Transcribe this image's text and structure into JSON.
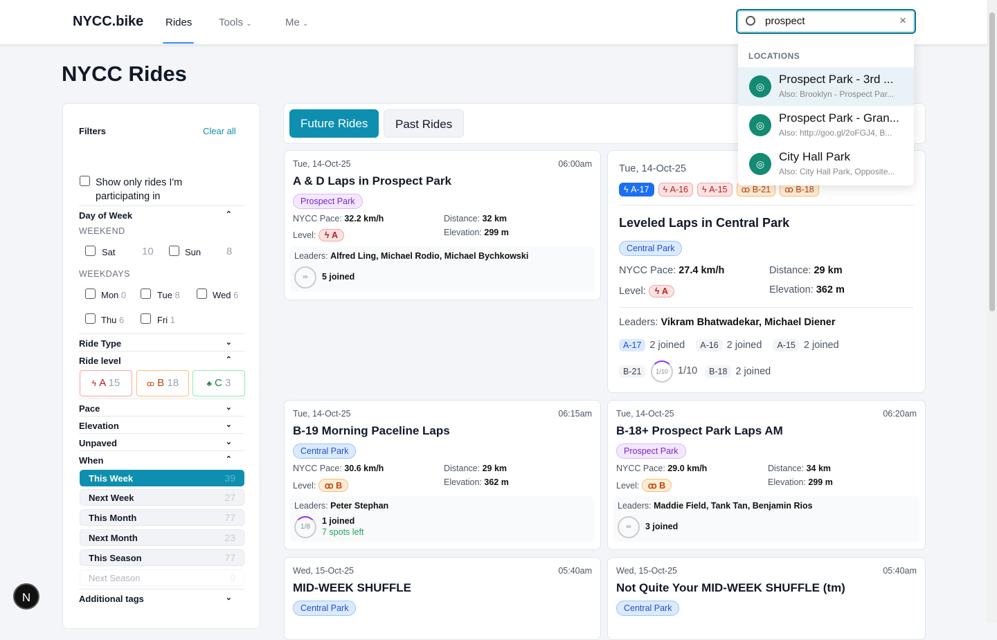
{
  "header": {
    "logo": "NYCC.bike",
    "nav": [
      "Rides",
      "Tools",
      "Me"
    ],
    "search_value": "prospect",
    "clear_icon": "×"
  },
  "dropdown": {
    "section": "LOCATIONS",
    "items": [
      {
        "title": "Prospect Park - 3rd ...",
        "sub": "Also: Brooklyn - Prospect Par..."
      },
      {
        "title": "Prospect Park - Gran...",
        "sub": "Also: http://goo.gl/2oFGJ4, B..."
      },
      {
        "title": "City Hall Park",
        "sub": "Also: City Hall Park, Opposite..."
      }
    ]
  },
  "page_title": "NYCC Rides",
  "filters": {
    "title": "Filters",
    "clear": "Clear all",
    "participating": "Show only rides I'm participating in",
    "day_of_week": "Day of Week",
    "weekend": "WEEKEND",
    "weekdays": "WEEKDAYS",
    "days": [
      {
        "l": "Sat",
        "n": "10"
      },
      {
        "l": "Sun",
        "n": "8"
      },
      {
        "l": "Mon",
        "n": "0"
      },
      {
        "l": "Tue",
        "n": "8"
      },
      {
        "l": "Wed",
        "n": "6"
      },
      {
        "l": "Thu",
        "n": "6"
      },
      {
        "l": "Fri",
        "n": "1"
      }
    ],
    "ride_type": "Ride Type",
    "ride_level": "Ride level",
    "levels": [
      {
        "l": "A",
        "n": "15"
      },
      {
        "l": "B",
        "n": "18"
      },
      {
        "l": "C",
        "n": "3"
      }
    ],
    "pace": "Pace",
    "elevation": "Elevation",
    "unpaved": "Unpaved",
    "when": "When",
    "when_items": [
      {
        "l": "This Week",
        "n": "39"
      },
      {
        "l": "Next Week",
        "n": "27"
      },
      {
        "l": "This Month",
        "n": "77"
      },
      {
        "l": "Next Month",
        "n": "23"
      },
      {
        "l": "This Season",
        "n": "77"
      },
      {
        "l": "Next Season",
        "n": "0"
      }
    ],
    "additional": "Additional tags"
  },
  "tabs": [
    "Future Rides",
    "Past Rides"
  ],
  "labels": {
    "pace": "NYCC Pace:",
    "distance": "Distance:",
    "elevation": "Elevation:",
    "level": "Level:",
    "leaders": "Leaders:"
  },
  "rides": [
    {
      "date": "Tue, 14-Oct-25",
      "time": "06:00am",
      "title": "A & D Laps in Prospect Park",
      "loc": "Prospect Park",
      "pace": "32.2 km/h",
      "dist": "32 km",
      "elev": "299 m",
      "level": "A",
      "leaders": "Alfred Ling, Michael Rodio, Michael Bychkowski",
      "joined": "5 joined",
      "ring": "∞"
    },
    {
      "date": "Tue, 14-Oct-25",
      "title": "Leveled Laps in Central Park",
      "loc": "Central Park",
      "pace": "27.4 km/h",
      "dist": "29 km",
      "elev": "362 m",
      "level": "A",
      "leaders": "Vikram Bhatwadekar, Michael Diener",
      "groups": [
        "A-17",
        "A-16",
        "A-15",
        "B-21",
        "B-18"
      ],
      "group_stats": [
        {
          "g": "A-17",
          "s": "2 joined"
        },
        {
          "g": "A-16",
          "s": "2 joined"
        },
        {
          "g": "A-15",
          "s": "2 joined"
        },
        {
          "g": "B-21",
          "ring": "1/10",
          "s": "1/10"
        },
        {
          "g": "B-18",
          "s": "2 joined"
        }
      ]
    },
    {
      "date": "Tue, 14-Oct-25",
      "time": "06:15am",
      "title": "B-19 Morning Paceline Laps",
      "loc": "Central Park",
      "pace": "30.6 km/h",
      "dist": "29 km",
      "elev": "362 m",
      "level": "B",
      "leaders": "Peter Stephan",
      "joined": "1 joined",
      "spots": "7 spots left",
      "ring": "1/8"
    },
    {
      "date": "Tue, 14-Oct-25",
      "time": "06:20am",
      "title": "B-18+ Prospect Park Laps AM",
      "loc": "Prospect Park",
      "pace": "29.0 km/h",
      "dist": "34 km",
      "elev": "299 m",
      "level": "B",
      "leaders": "Maddie Field, Tank Tan, Benjamin Rios",
      "joined": "3 joined",
      "ring": "∞"
    },
    {
      "date": "Wed, 15-Oct-25",
      "time": "05:40am",
      "title": "MID-WEEK SHUFFLE",
      "loc": "Central Park"
    },
    {
      "date": "Wed, 15-Oct-25",
      "time": "05:40am",
      "title": "Not Quite Your MID-WEEK SHUFFLE (tm)",
      "loc": "Central Park"
    }
  ],
  "fab": "N",
  "colors": {
    "accent": "#0e8fb0",
    "level_a": "#b91c1c",
    "level_b": "#c2410c",
    "level_c": "#15803d",
    "pin": "#138a72"
  }
}
